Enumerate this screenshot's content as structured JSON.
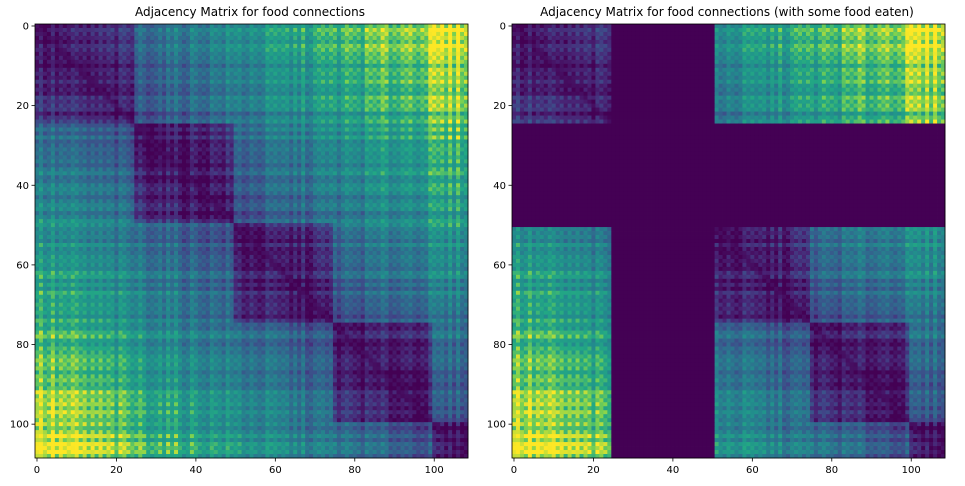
{
  "chart_data": [
    {
      "type": "heatmap",
      "title": "Adjacency Matrix for food connections",
      "size": 109,
      "colormap": "viridis",
      "xlim": [
        -0.5,
        108.5
      ],
      "ylim": [
        108.5,
        -0.5
      ],
      "xticks": [
        0,
        20,
        40,
        60,
        80,
        100
      ],
      "yticks": [
        0,
        20,
        40,
        60,
        80,
        100
      ],
      "xlabel": "",
      "ylabel": "",
      "eaten_ranges": []
    },
    {
      "type": "heatmap",
      "title": "Adjacency Matrix for food connections (with some food eaten)",
      "size": 109,
      "colormap": "viridis",
      "xlim": [
        -0.5,
        108.5
      ],
      "ylim": [
        108.5,
        -0.5
      ],
      "xticks": [
        0,
        20,
        40,
        60,
        80,
        100
      ],
      "yticks": [
        0,
        20,
        40,
        60,
        80,
        100
      ],
      "xlabel": "",
      "ylabel": "",
      "eaten_ranges": [
        [
          25,
          50
        ]
      ]
    }
  ]
}
